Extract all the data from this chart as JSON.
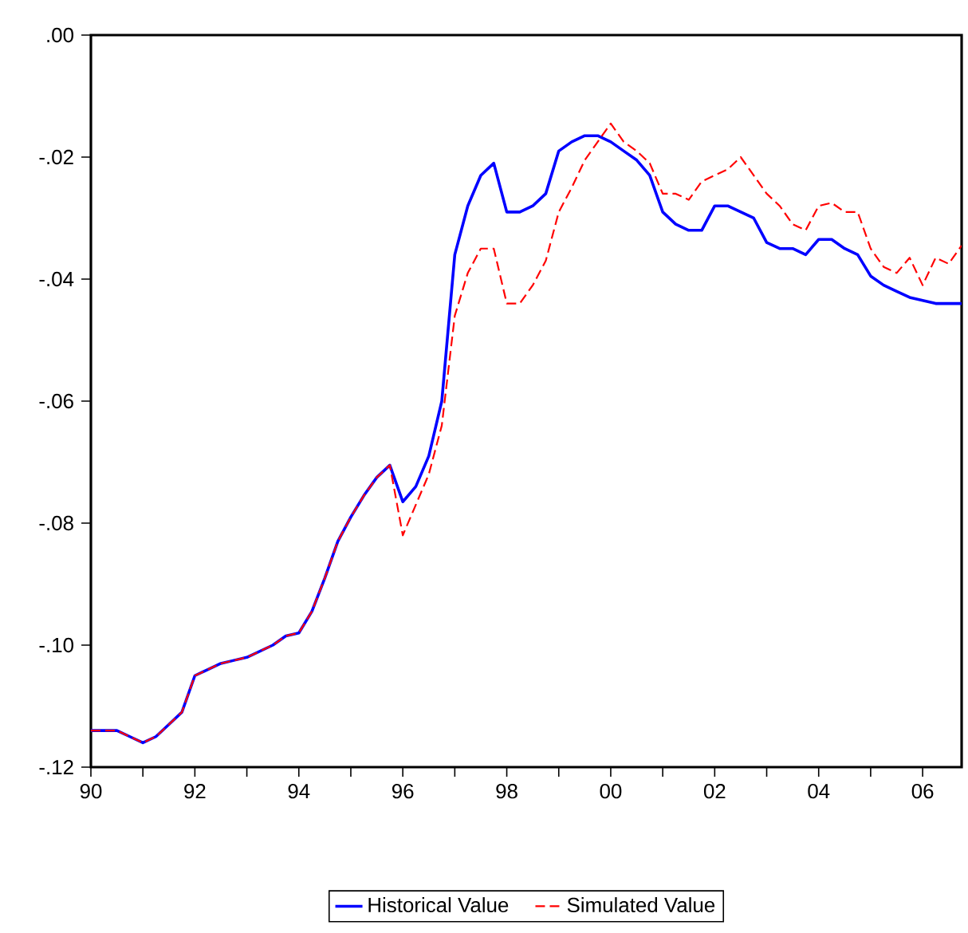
{
  "chart_data": {
    "type": "line",
    "x": [
      1990,
      1990.25,
      1990.5,
      1990.75,
      1991,
      1991.25,
      1991.5,
      1991.75,
      1992,
      1992.25,
      1992.5,
      1992.75,
      1993,
      1993.25,
      1993.5,
      1993.75,
      1994,
      1994.25,
      1994.5,
      1994.75,
      1995,
      1995.25,
      1995.5,
      1995.75,
      1996,
      1996.25,
      1996.5,
      1996.75,
      1997,
      1997.25,
      1997.5,
      1997.75,
      1998,
      1998.25,
      1998.5,
      1998.75,
      1999,
      1999.25,
      1999.5,
      1999.75,
      2000,
      2000.25,
      2000.5,
      2000.75,
      2001,
      2001.25,
      2001.5,
      2001.75,
      2002,
      2002.25,
      2002.5,
      2002.75,
      2003,
      2003.25,
      2003.5,
      2003.75,
      2004,
      2004.25,
      2004.5,
      2004.75,
      2005,
      2005.25,
      2005.5,
      2005.75,
      2006,
      2006.25,
      2006.5,
      2006.75
    ],
    "series": [
      {
        "name": "Historical Value",
        "color": "#0000ff",
        "line_style": "solid",
        "values": [
          -0.114,
          -0.114,
          -0.114,
          -0.115,
          -0.116,
          -0.115,
          -0.113,
          -0.111,
          -0.105,
          -0.104,
          -0.103,
          -0.1025,
          -0.102,
          -0.101,
          -0.1,
          -0.0985,
          -0.098,
          -0.0945,
          -0.089,
          -0.083,
          -0.079,
          -0.0755,
          -0.0725,
          -0.0705,
          -0.0765,
          -0.074,
          -0.069,
          -0.06,
          -0.036,
          -0.028,
          -0.023,
          -0.021,
          -0.029,
          -0.029,
          -0.028,
          -0.026,
          -0.019,
          -0.0175,
          -0.0165,
          -0.0165,
          -0.0175,
          -0.019,
          -0.0205,
          -0.023,
          -0.029,
          -0.031,
          -0.032,
          -0.032,
          -0.028,
          -0.028,
          -0.029,
          -0.03,
          -0.034,
          -0.035,
          -0.035,
          -0.036,
          -0.0335,
          -0.0335,
          -0.035,
          -0.036,
          -0.0395,
          -0.041,
          -0.042,
          -0.043,
          -0.0435,
          -0.044,
          -0.044,
          -0.044
        ]
      },
      {
        "name": "Simulated Value",
        "color": "#ff0000",
        "line_style": "dashed",
        "values": [
          -0.114,
          -0.114,
          -0.114,
          -0.115,
          -0.116,
          -0.115,
          -0.113,
          -0.111,
          -0.105,
          -0.104,
          -0.103,
          -0.1025,
          -0.102,
          -0.101,
          -0.1,
          -0.0985,
          -0.098,
          -0.0945,
          -0.089,
          -0.083,
          -0.079,
          -0.0755,
          -0.0725,
          -0.0705,
          -0.082,
          -0.077,
          -0.072,
          -0.064,
          -0.046,
          -0.039,
          -0.035,
          -0.035,
          -0.044,
          -0.044,
          -0.041,
          -0.037,
          -0.029,
          -0.025,
          -0.0205,
          -0.0175,
          -0.0145,
          -0.0175,
          -0.019,
          -0.021,
          -0.026,
          -0.026,
          -0.027,
          -0.024,
          -0.023,
          -0.022,
          -0.02,
          -0.023,
          -0.026,
          -0.028,
          -0.031,
          -0.032,
          -0.028,
          -0.0275,
          -0.029,
          -0.029,
          -0.035,
          -0.038,
          -0.039,
          -0.0365,
          -0.041,
          -0.0365,
          -0.0375,
          -0.0345
        ]
      }
    ],
    "xlim": [
      1990,
      2006.75
    ],
    "xticks": [
      {
        "value": 1990,
        "label": "90"
      },
      {
        "value": 1991,
        "label": null
      },
      {
        "value": 1992,
        "label": "92"
      },
      {
        "value": 1993,
        "label": null
      },
      {
        "value": 1994,
        "label": "94"
      },
      {
        "value": 1995,
        "label": null
      },
      {
        "value": 1996,
        "label": "96"
      },
      {
        "value": 1997,
        "label": null
      },
      {
        "value": 1998,
        "label": "98"
      },
      {
        "value": 1999,
        "label": null
      },
      {
        "value": 2000,
        "label": "00"
      },
      {
        "value": 2001,
        "label": null
      },
      {
        "value": 2002,
        "label": "02"
      },
      {
        "value": 2003,
        "label": null
      },
      {
        "value": 2004,
        "label": "04"
      },
      {
        "value": 2005,
        "label": null
      },
      {
        "value": 2006,
        "label": "06"
      }
    ],
    "ylim": [
      -0.12,
      0
    ],
    "yticks": [
      {
        "value": -0.12,
        "label": "-.12"
      },
      {
        "value": -0.1,
        "label": "-.10"
      },
      {
        "value": -0.08,
        "label": "-.08"
      },
      {
        "value": -0.06,
        "label": "-.06"
      },
      {
        "value": -0.04,
        "label": "-.04"
      },
      {
        "value": -0.02,
        "label": "-.02"
      },
      {
        "value": 0,
        "label": ".00"
      }
    ],
    "legend": "bottom"
  }
}
